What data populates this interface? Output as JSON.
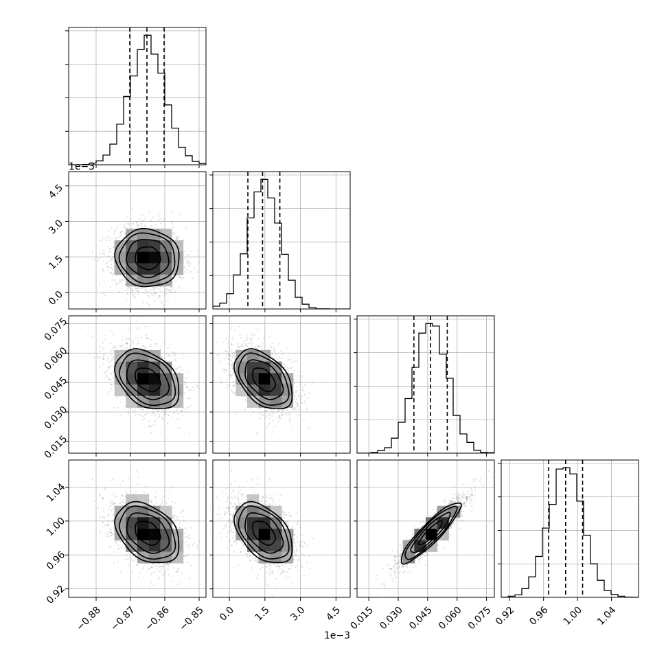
{
  "chart_data": {
    "type": "corner",
    "layout": "lower-triangle 4x4",
    "grid": true,
    "hist_bins": 20,
    "quantile_style": "dashed",
    "parameters": [
      {
        "index": 0,
        "range": [
          -0.888,
          -0.848
        ],
        "ticks": [
          -0.88,
          -0.87,
          -0.86,
          -0.85
        ],
        "tick_labels": [
          "−0.88",
          "−0.87",
          "−0.86",
          "−0.85"
        ],
        "offset_label": "",
        "mean": -0.865,
        "sd": 0.0052,
        "quantiles": [
          -0.8702,
          -0.8652,
          -0.8602
        ]
      },
      {
        "index": 1,
        "range": [
          -0.0007,
          0.0051
        ],
        "ticks": [
          0.0,
          0.0015,
          0.003,
          0.0045
        ],
        "tick_labels": [
          "0.0",
          "1.5",
          "3.0",
          "4.5"
        ],
        "offset_label": "1e−3",
        "mean": 0.00145,
        "sd": 0.00068,
        "quantiles": [
          0.00078,
          0.0014,
          0.00213
        ]
      },
      {
        "index": 2,
        "range": [
          0.009,
          0.079
        ],
        "ticks": [
          0.015,
          0.03,
          0.045,
          0.06,
          0.075
        ],
        "tick_labels": [
          "0.015",
          "0.030",
          "0.045",
          "0.060",
          "0.075"
        ],
        "offset_label": "",
        "mean": 0.0465,
        "sd": 0.0085,
        "quantiles": [
          0.038,
          0.0465,
          0.055
        ]
      },
      {
        "index": 3,
        "range": [
          0.91,
          1.072
        ],
        "ticks": [
          0.92,
          0.96,
          1.0,
          1.04
        ],
        "tick_labels": [
          "0.92",
          "0.96",
          "1.00",
          "1.04"
        ],
        "offset_label": "",
        "mean": 0.986,
        "sd": 0.02,
        "quantiles": [
          0.966,
          0.986,
          1.006
        ]
      }
    ],
    "correlations": [
      {
        "pair": [
          1,
          0
        ],
        "rho": -0.05
      },
      {
        "pair": [
          2,
          0
        ],
        "rho": -0.35
      },
      {
        "pair": [
          2,
          1
        ],
        "rho": -0.45
      },
      {
        "pair": [
          3,
          0
        ],
        "rho": -0.35
      },
      {
        "pair": [
          3,
          1
        ],
        "rho": -0.45
      },
      {
        "pair": [
          3,
          2
        ],
        "rho": 0.9
      }
    ],
    "contour_levels_sigma": [
      0.5,
      1.0,
      1.5,
      2.0
    ]
  }
}
